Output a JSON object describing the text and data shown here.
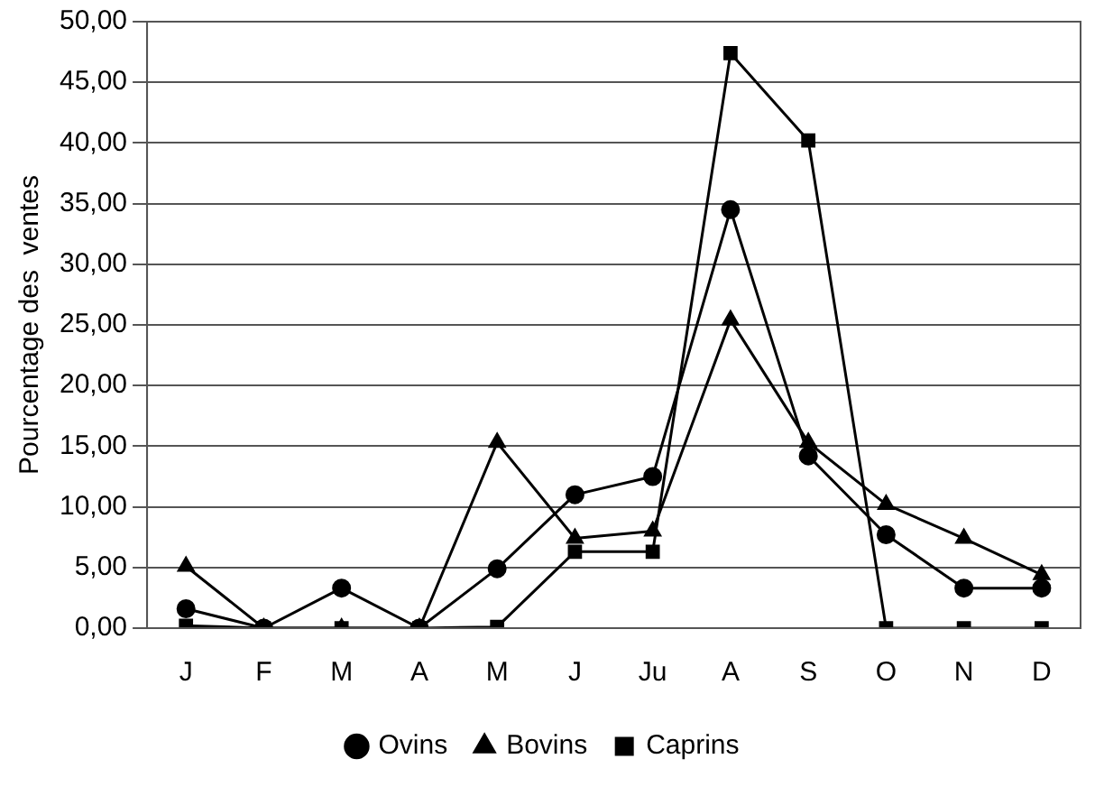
{
  "chart_data": {
    "type": "line",
    "ylabel": "Pourcentage des  ventes",
    "categories": [
      "J",
      "F",
      "M",
      "A",
      "M",
      "J",
      "Ju",
      "A",
      "S",
      "O",
      "N",
      "D"
    ],
    "series": [
      {
        "name": "Ovins",
        "color": "#000000",
        "marker": "circle",
        "values": [
          1.6,
          0,
          3.3,
          0,
          4.9,
          11.0,
          12.5,
          34.5,
          14.2,
          7.7,
          3.3,
          3.3
        ]
      },
      {
        "name": "Bovins",
        "color": "#000000",
        "marker": "triangle",
        "values": [
          5.1,
          0,
          0,
          0,
          15.3,
          7.4,
          8.0,
          25.4,
          15.3,
          10.2,
          7.4,
          4.4
        ]
      },
      {
        "name": "Caprins",
        "color": "#000000",
        "marker": "square",
        "values": [
          0.2,
          0,
          0,
          0,
          0.1,
          6.3,
          6.3,
          47.4,
          40.2,
          0,
          0,
          0
        ]
      }
    ],
    "ylim": [
      0,
      50
    ],
    "yticks": [
      {
        "value": 0,
        "label": "0,00"
      },
      {
        "value": 5,
        "label": "5,00"
      },
      {
        "value": 10,
        "label": "10,00"
      },
      {
        "value": 15,
        "label": "15,00"
      },
      {
        "value": 20,
        "label": "20,00"
      },
      {
        "value": 25,
        "label": "25,00"
      },
      {
        "value": 30,
        "label": "30,00"
      },
      {
        "value": 35,
        "label": "35,00"
      },
      {
        "value": 40,
        "label": "40,00"
      },
      {
        "value": 45,
        "label": "45,00"
      },
      {
        "value": 50,
        "label": "50,00"
      }
    ],
    "grid": "y",
    "legend": "bottom",
    "line_style": "solid"
  }
}
